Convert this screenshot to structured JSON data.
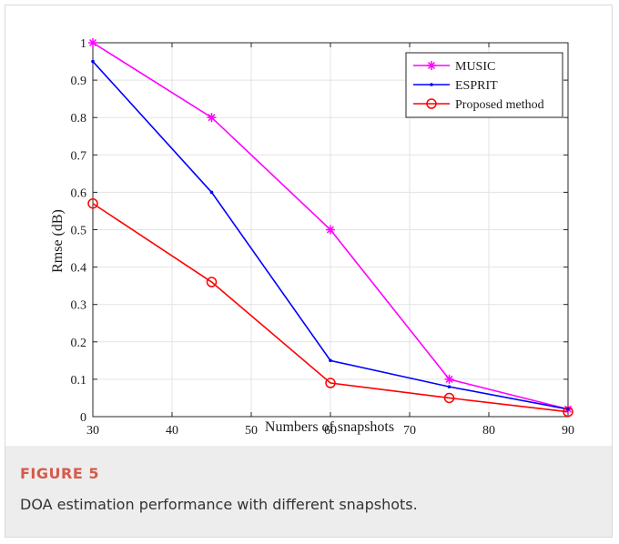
{
  "chart_data": {
    "type": "line",
    "xlabel": "Numbers of snapshots",
    "ylabel": "Rmse (dB)",
    "xlim": [
      30,
      90
    ],
    "ylim": [
      0,
      1
    ],
    "xticks": [
      "30",
      "40",
      "50",
      "60",
      "70",
      "80",
      "90"
    ],
    "yticks": [
      "0",
      "0.1",
      "0.2",
      "0.3",
      "0.4",
      "0.5",
      "0.6",
      "0.7",
      "0.8",
      "0.9",
      "1"
    ],
    "grid": true,
    "legend_position": "top-right",
    "x": [
      30,
      45,
      60,
      75,
      90
    ],
    "series": [
      {
        "name": "MUSIC",
        "color": "#ff00ff",
        "marker": "asterisk",
        "values": [
          1.0,
          0.8,
          0.5,
          0.1,
          0.02
        ]
      },
      {
        "name": "ESPRIT",
        "color": "#0000ff",
        "marker": "dot",
        "values": [
          0.95,
          0.6,
          0.15,
          0.08,
          0.02
        ]
      },
      {
        "name": "Proposed method",
        "color": "#ff0000",
        "marker": "circle",
        "values": [
          0.57,
          0.36,
          0.09,
          0.05,
          0.013
        ]
      }
    ]
  },
  "caption": {
    "label": "FIGURE 5",
    "text": "DOA estimation performance with different snapshots."
  }
}
